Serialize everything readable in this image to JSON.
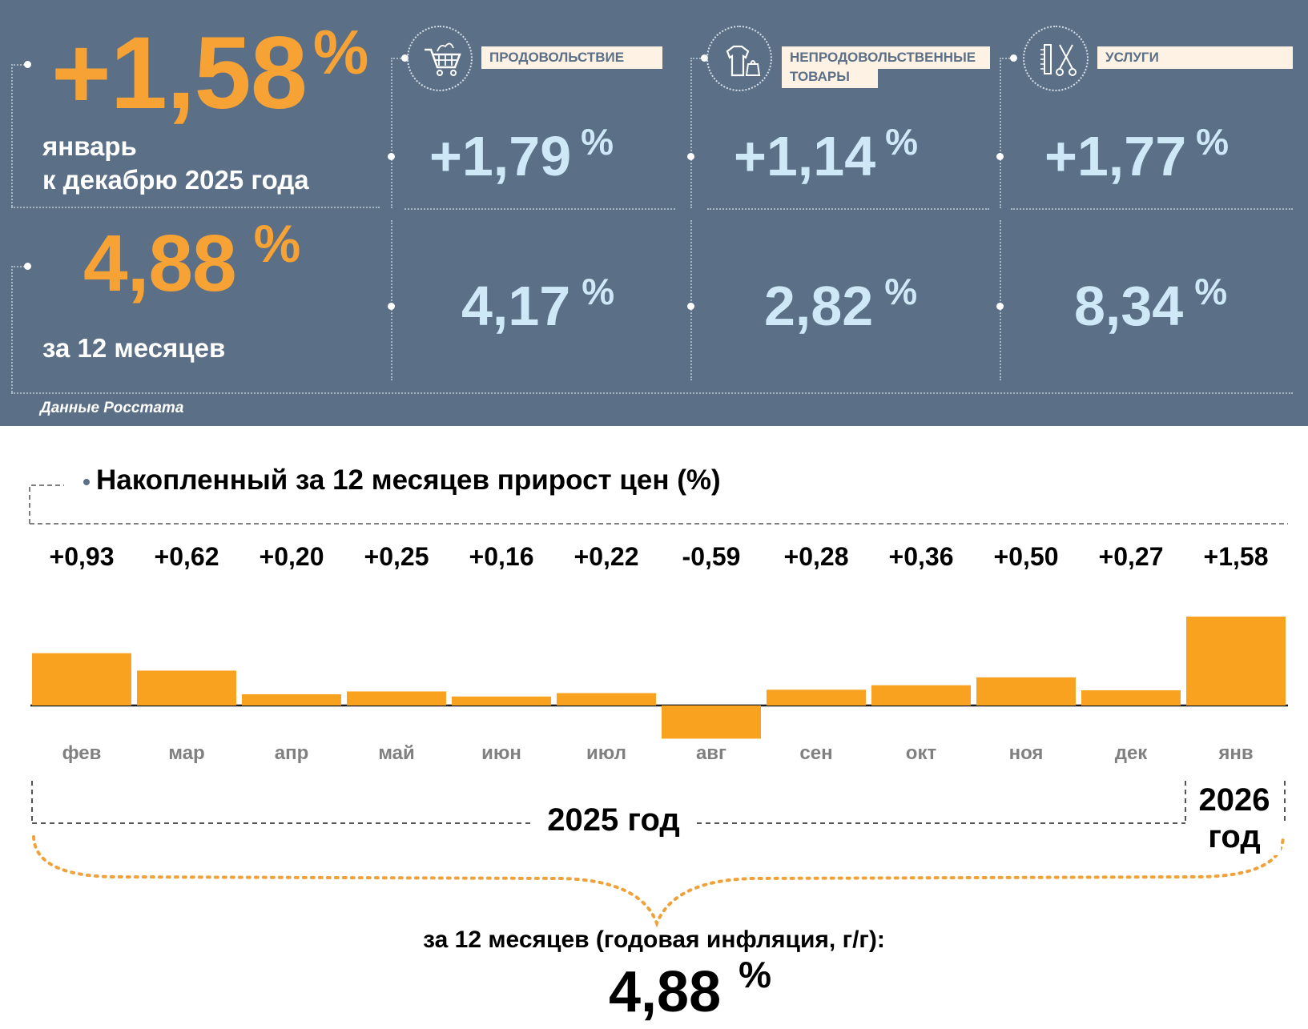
{
  "headline": {
    "monthly_value": "+1,58",
    "monthly_unit": "%",
    "monthly_label_line1": "январь",
    "monthly_label_line2": "к декабрю 2025 года",
    "annual_value": "4,88",
    "annual_unit": "%",
    "annual_label": "за 12 месяцев",
    "accent_color": "#f7a234",
    "panel_color": "#5b6f86"
  },
  "categories": [
    {
      "name": "ПРОДОВОЛЬСТВИЕ",
      "icon": "shopping-cart-icon",
      "monthly": "+1,79",
      "annual": "4,17",
      "unit": "%"
    },
    {
      "name_line1": "НЕПРОДОВОЛЬСТВЕННЫЕ",
      "name_line2": "ТОВАРЫ",
      "icon": "clothes-bag-icon",
      "monthly": "+1,14",
      "annual": "2,82",
      "unit": "%"
    },
    {
      "name": "УСЛУГИ",
      "icon": "comb-scissors-icon",
      "monthly": "+1,77",
      "annual": "8,34",
      "unit": "%"
    }
  ],
  "source": "Данные Росстата",
  "chart_data": {
    "type": "bar",
    "title": "Накопленный за 12 месяцев прирост цен (%)",
    "categories": [
      "фев",
      "мар",
      "апр",
      "май",
      "июн",
      "июл",
      "авг",
      "сен",
      "окт",
      "ноя",
      "дек",
      "янв"
    ],
    "values": [
      0.93,
      0.62,
      0.2,
      0.25,
      0.16,
      0.22,
      -0.59,
      0.28,
      0.36,
      0.5,
      0.27,
      1.58
    ],
    "value_labels": [
      "+0,93",
      "+0,62",
      "+0,20",
      "+0,25",
      "+0,16",
      "+0,22",
      "-0,59",
      "+0,28",
      "+0,36",
      "+0,50",
      "+0,27",
      "+1,58"
    ],
    "bar_color": "#f9a21f",
    "year_groups": [
      {
        "label": "2025 год",
        "months": 11
      },
      {
        "label_line1": "2026",
        "label_line2": "год",
        "months": 1
      }
    ],
    "summary_label": "за 12 месяцев (годовая инфляция, г/г):",
    "summary_value": "4,88",
    "summary_unit": "%"
  }
}
